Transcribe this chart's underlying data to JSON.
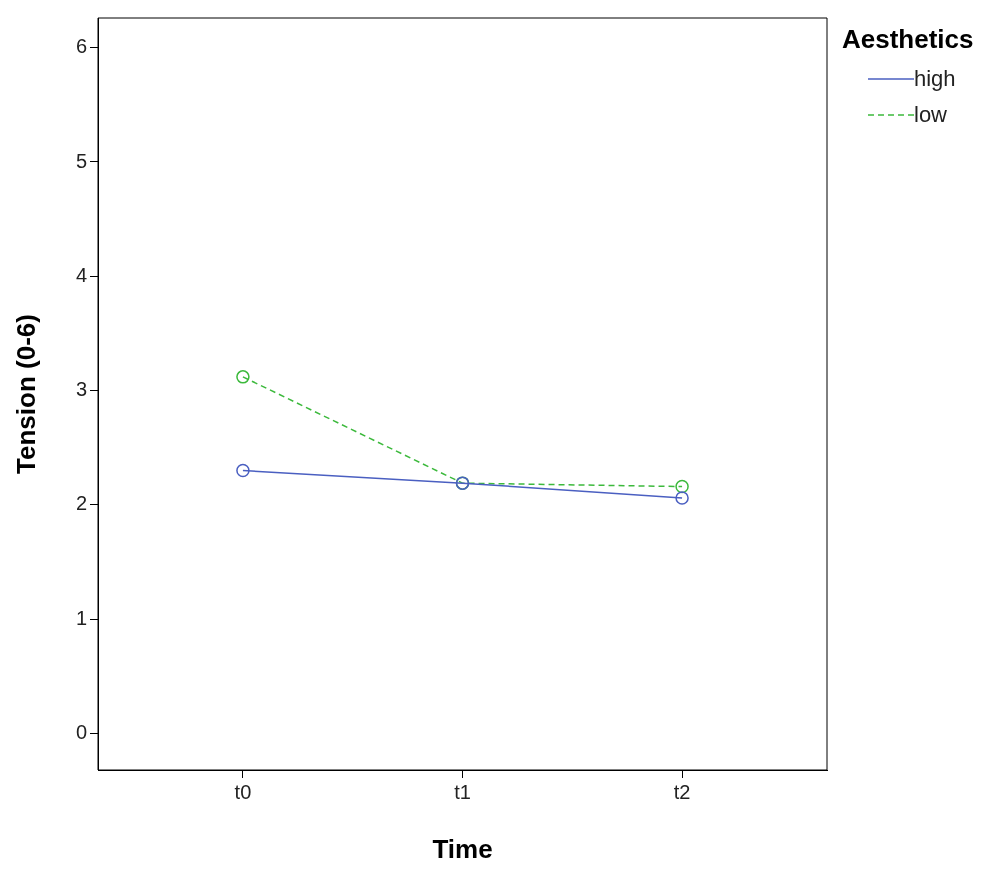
{
  "chart_data": {
    "type": "line",
    "xlabel": "Time",
    "ylabel": "Tension (0-6)",
    "legend_title": "Aesthetics",
    "legend": "top right",
    "marker": "circle",
    "categories": [
      "t0",
      "t1",
      "t2"
    ],
    "ylim": [
      -0.32,
      6.26
    ],
    "yticks": [
      0,
      1,
      2,
      3,
      4,
      5,
      6
    ],
    "series": [
      {
        "name": "high",
        "color": "#4a5fc1",
        "line_style": "solid",
        "values": [
          2.3,
          2.19,
          2.06
        ]
      },
      {
        "name": "low",
        "color": "#3cb93c",
        "line_style": "dashed",
        "values": [
          3.12,
          2.19,
          2.16
        ]
      }
    ]
  }
}
